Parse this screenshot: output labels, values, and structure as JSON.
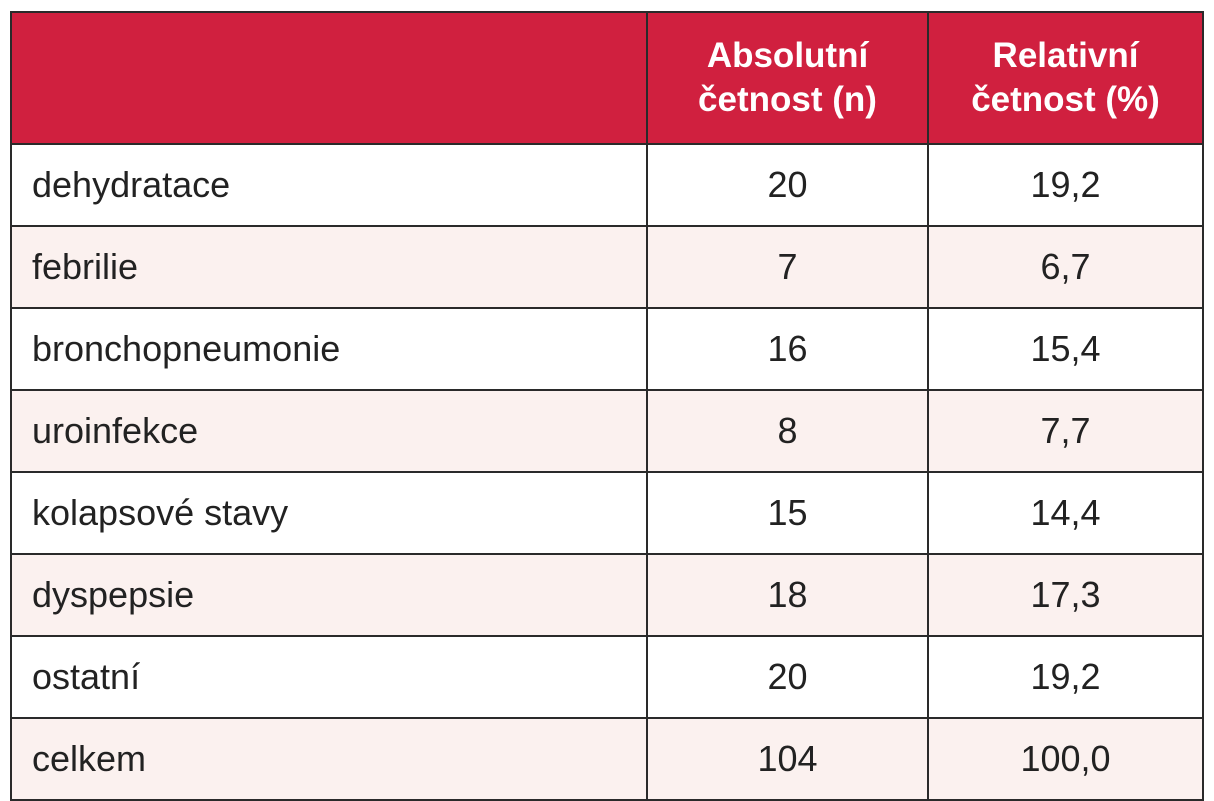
{
  "table": {
    "header": {
      "col1": "",
      "col2_line1": "Absolutní",
      "col2_line2": "četnost (n)",
      "col3_line1": "Relativní",
      "col3_line2": "četnost (%)"
    },
    "rows": [
      {
        "label": "dehydratace",
        "absolute": "20",
        "relative": "19,2"
      },
      {
        "label": "febrilie",
        "absolute": "7",
        "relative": "6,7"
      },
      {
        "label": "bronchopneumonie",
        "absolute": "16",
        "relative": "15,4"
      },
      {
        "label": "uroinfekce",
        "absolute": "8",
        "relative": "7,7"
      },
      {
        "label": "kolapsové stavy",
        "absolute": "15",
        "relative": "14,4"
      },
      {
        "label": "dyspepsie",
        "absolute": "18",
        "relative": "17,3"
      },
      {
        "label": "ostatní",
        "absolute": "20",
        "relative": "19,2"
      },
      {
        "label": "celkem",
        "absolute": "104",
        "relative": "100,0"
      }
    ]
  },
  "colors": {
    "header_bg": "#d0203f",
    "header_text": "#ffffff",
    "stripe_bg": "#fbf1ef",
    "border": "#2a2a2a"
  }
}
